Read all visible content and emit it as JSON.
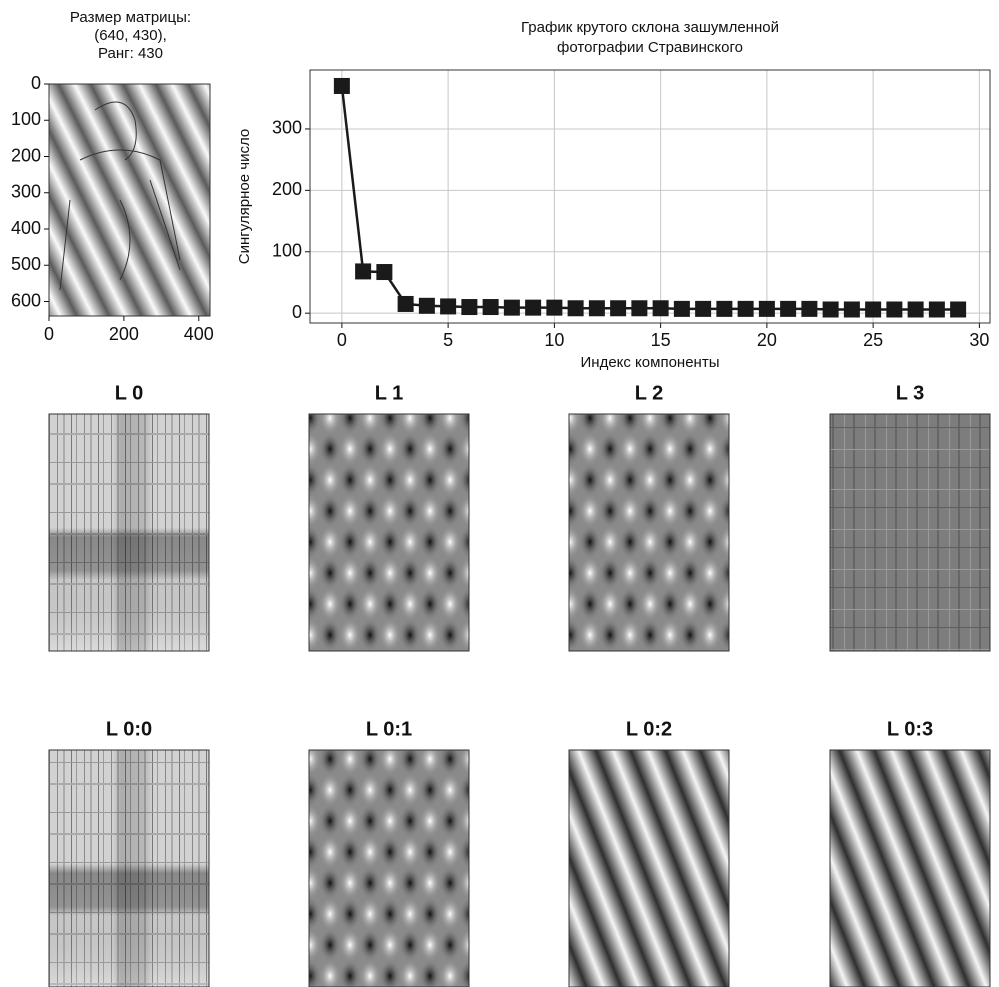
{
  "chart_data": [
    {
      "type": "image",
      "title": [
        "Размер матрицы:",
        "(640, 430),",
        "Ранг: 430"
      ],
      "xlim": [
        0,
        430
      ],
      "xticks": [
        0,
        200,
        400
      ],
      "ylim": [
        640,
        0
      ],
      "yticks": [
        0,
        100,
        200,
        300,
        400,
        500,
        600
      ]
    },
    {
      "type": "line",
      "title": [
        "График крутого склона зашумленной",
        "фотографии Стравинского"
      ],
      "xlabel": "Индекс компоненты",
      "ylabel": "Сингулярное число",
      "x": [
        0,
        1,
        2,
        3,
        4,
        5,
        6,
        7,
        8,
        9,
        10,
        11,
        12,
        13,
        14,
        15,
        16,
        17,
        18,
        19,
        20,
        21,
        22,
        23,
        24,
        25,
        26,
        27,
        28,
        29
      ],
      "values": [
        370,
        68,
        67,
        15,
        12,
        11,
        10,
        10,
        9,
        9,
        9,
        8,
        8,
        8,
        8,
        8,
        7,
        7,
        7,
        7,
        7,
        7,
        7,
        6,
        6,
        6,
        6,
        6,
        6,
        6
      ],
      "color": "#1a1a1a",
      "marker": "square",
      "xlim": [
        -1.5,
        30.5
      ],
      "xticks": [
        0,
        5,
        10,
        15,
        20,
        25,
        30
      ],
      "ylim": [
        -16,
        396
      ],
      "yticks": [
        0,
        100,
        200,
        300
      ],
      "grid": true
    },
    {
      "type": "image",
      "title": "L 0"
    },
    {
      "type": "image",
      "title": "L 1"
    },
    {
      "type": "image",
      "title": "L 2"
    },
    {
      "type": "image",
      "title": "L 3"
    },
    {
      "type": "image",
      "title": "L 0:0"
    },
    {
      "type": "image",
      "title": "L 0:1"
    },
    {
      "type": "image",
      "title": "L 0:2"
    },
    {
      "type": "image",
      "title": "L 0:3"
    }
  ]
}
